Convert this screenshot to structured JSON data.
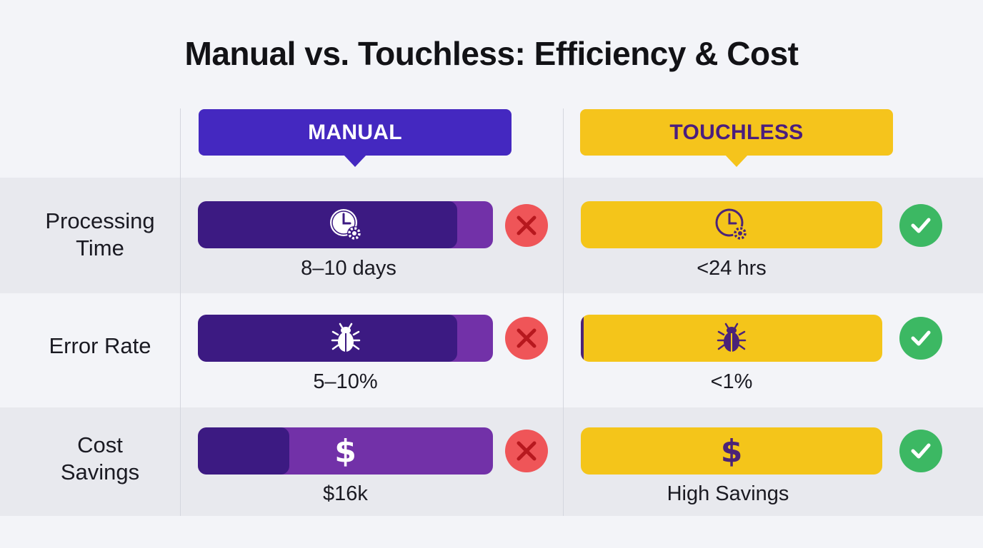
{
  "title": "Manual vs. Touchless: Efficiency & Cost",
  "columns": {
    "manual": {
      "label": "MANUAL",
      "color": "#4428c0"
    },
    "touchless": {
      "label": "TOUCHLESS",
      "color": "#f5c41c"
    }
  },
  "rows": [
    {
      "label_line1": "Processing",
      "label_line2": "Time",
      "icon": "clock-gear-icon",
      "manual": {
        "value": "8–10 days",
        "fill_fraction": 0.88,
        "status": "cross-icon"
      },
      "touchless": {
        "value": "<24 hrs",
        "fill_fraction": 0.0,
        "status": "check-icon"
      }
    },
    {
      "label_line1": "Error Rate",
      "label_line2": "",
      "icon": "bug-icon",
      "manual": {
        "value": "5–10%",
        "fill_fraction": 0.88,
        "status": "cross-icon"
      },
      "touchless": {
        "value": "<1%",
        "fill_fraction": 0.01,
        "status": "check-icon"
      }
    },
    {
      "label_line1": "Cost",
      "label_line2": "Savings",
      "icon": "dollar-icon",
      "icon_glyph": "$",
      "manual": {
        "value": "$16k",
        "fill_fraction": 0.31,
        "status": "cross-icon"
      },
      "touchless": {
        "value": "High Savings",
        "fill_fraction": 0.0,
        "status": "check-icon"
      }
    }
  ],
  "colors": {
    "manual_dark": "#3c1a82",
    "manual_light": "#7231a8",
    "touchless": "#f4c51a",
    "bad": "#ef5558",
    "good": "#3cb863"
  }
}
